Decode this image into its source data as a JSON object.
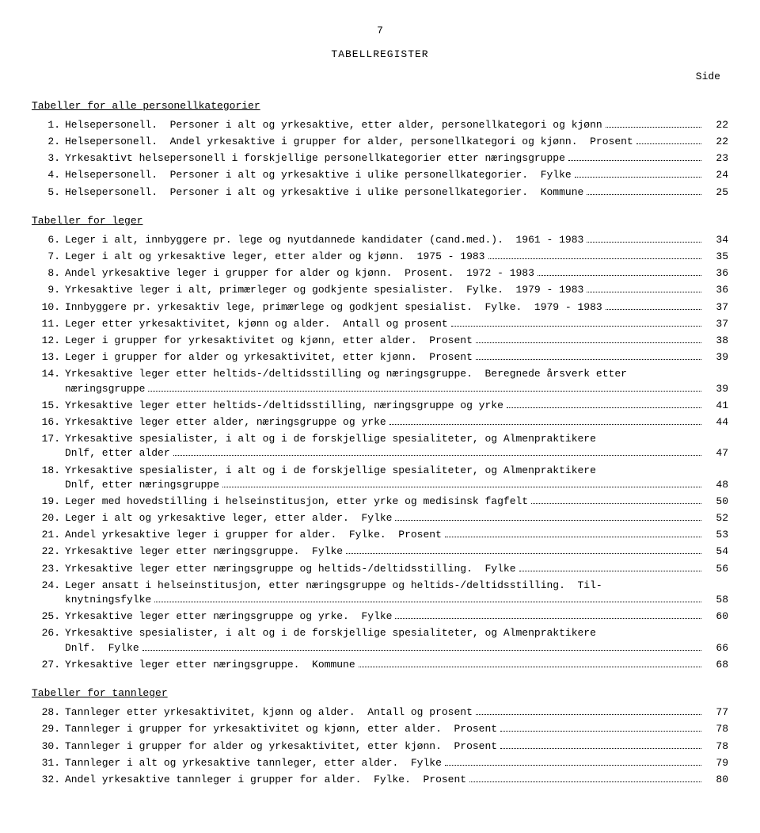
{
  "page_number": "7",
  "title": "TABELLREGISTER",
  "side_label": "Side",
  "sections": [
    {
      "heading": "Tabeller for alle personellkategorier",
      "entries": [
        {
          "n": "1.",
          "lines": [
            "Helsepersonell.  Personer i alt og yrkesaktive, etter alder, personellkategori og kjønn"
          ],
          "pg": "22"
        },
        {
          "n": "2.",
          "lines": [
            "Helsepersonell.  Andel yrkesaktive i grupper for alder, personellkategori og kjønn.  Prosent"
          ],
          "pg": "22"
        },
        {
          "n": "3.",
          "lines": [
            "Yrkesaktivt helsepersonell i forskjellige personellkategorier etter næringsgruppe"
          ],
          "pg": "23"
        },
        {
          "n": "4.",
          "lines": [
            "Helsepersonell.  Personer i alt og yrkesaktive i ulike personellkategorier.  Fylke"
          ],
          "pg": "24"
        },
        {
          "n": "5.",
          "lines": [
            "Helsepersonell.  Personer i alt og yrkesaktive i ulike personellkategorier.  Kommune"
          ],
          "pg": "25"
        }
      ]
    },
    {
      "heading": "Tabeller for leger",
      "entries": [
        {
          "n": "6.",
          "lines": [
            "Leger i alt, innbyggere pr. lege og nyutdannede kandidater (cand.med.).  1961 - 1983"
          ],
          "pg": "34"
        },
        {
          "n": "7.",
          "lines": [
            "Leger i alt og yrkesaktive leger, etter alder og kjønn.  1975 - 1983"
          ],
          "pg": "35"
        },
        {
          "n": "8.",
          "lines": [
            "Andel yrkesaktive leger i grupper for alder og kjønn.  Prosent.  1972 - 1983"
          ],
          "pg": "36"
        },
        {
          "n": "9.",
          "lines": [
            "Yrkesaktive leger i alt, primærleger og godkjente spesialister.  Fylke.  1979 - 1983"
          ],
          "pg": "36"
        },
        {
          "n": "10.",
          "lines": [
            "Innbyggere pr. yrkesaktiv lege, primærlege og godkjent spesialist.  Fylke.  1979 - 1983"
          ],
          "pg": "37"
        },
        {
          "n": "11.",
          "lines": [
            "Leger etter yrkesaktivitet, kjønn og alder.  Antall og prosent"
          ],
          "pg": "37"
        },
        {
          "n": "12.",
          "lines": [
            "Leger i grupper for yrkesaktivitet og kjønn, etter alder.  Prosent"
          ],
          "pg": "38"
        },
        {
          "n": "13.",
          "lines": [
            "Leger i grupper for alder og yrkesaktivitet, etter kjønn.  Prosent"
          ],
          "pg": "39"
        },
        {
          "n": "14.",
          "lines": [
            "Yrkesaktive leger etter heltids-/deltidsstilling og næringsgruppe.  Beregnede årsverk etter",
            "næringsgruppe"
          ],
          "pg": "39"
        },
        {
          "n": "15.",
          "lines": [
            "Yrkesaktive leger etter heltids-/deltidsstilling, næringsgruppe og yrke"
          ],
          "pg": "41"
        },
        {
          "n": "16.",
          "lines": [
            "Yrkesaktive leger etter alder, næringsgruppe og yrke"
          ],
          "pg": "44"
        },
        {
          "n": "17.",
          "lines": [
            "Yrkesaktive spesialister, i alt og i de forskjellige spesialiteter, og Almenpraktikere",
            "Dnlf, etter alder"
          ],
          "pg": "47"
        },
        {
          "n": "18.",
          "lines": [
            "Yrkesaktive spesialister, i alt og i de forskjellige spesialiteter, og Almenpraktikere",
            "Dnlf, etter næringsgruppe"
          ],
          "pg": "48"
        },
        {
          "n": "19.",
          "lines": [
            "Leger med hovedstilling i helseinstitusjon, etter yrke og medisinsk fagfelt"
          ],
          "pg": "50"
        },
        {
          "n": "20.",
          "lines": [
            "Leger i alt og yrkesaktive leger, etter alder.  Fylke"
          ],
          "pg": "52"
        },
        {
          "n": "21.",
          "lines": [
            "Andel yrkesaktive leger i grupper for alder.  Fylke.  Prosent"
          ],
          "pg": "53"
        },
        {
          "n": "22.",
          "lines": [
            "Yrkesaktive leger etter næringsgruppe.  Fylke"
          ],
          "pg": "54"
        },
        {
          "n": "23.",
          "lines": [
            "Yrkesaktive leger etter næringsgruppe og heltids-/deltidsstilling.  Fylke"
          ],
          "pg": "56"
        },
        {
          "n": "24.",
          "lines": [
            "Leger ansatt i helseinstitusjon, etter næringsgruppe og heltids-/deltidsstilling.  Til-",
            "knytningsfylke"
          ],
          "pg": "58"
        },
        {
          "n": "25.",
          "lines": [
            "Yrkesaktive leger etter næringsgruppe og yrke.  Fylke"
          ],
          "pg": "60"
        },
        {
          "n": "26.",
          "lines": [
            "Yrkesaktive spesialister, i alt og i de forskjellige spesialiteter, og Almenpraktikere",
            "Dnlf.  Fylke"
          ],
          "pg": "66"
        },
        {
          "n": "27.",
          "lines": [
            "Yrkesaktive leger etter næringsgruppe.  Kommune"
          ],
          "pg": "68"
        }
      ]
    },
    {
      "heading": "Tabeller for tannleger",
      "entries": [
        {
          "n": "28.",
          "lines": [
            "Tannleger etter yrkesaktivitet, kjønn og alder.  Antall og prosent"
          ],
          "pg": "77"
        },
        {
          "n": "29.",
          "lines": [
            "Tannleger i grupper for yrkesaktivitet og kjønn, etter alder.  Prosent"
          ],
          "pg": "78"
        },
        {
          "n": "30.",
          "lines": [
            "Tannleger i grupper for alder og yrkesaktivitet, etter kjønn.  Prosent"
          ],
          "pg": "78"
        },
        {
          "n": "31.",
          "lines": [
            "Tannleger i alt og yrkesaktive tannleger, etter alder.  Fylke"
          ],
          "pg": "79"
        },
        {
          "n": "32.",
          "lines": [
            "Andel yrkesaktive tannleger i grupper for alder.  Fylke.  Prosent"
          ],
          "pg": "80"
        }
      ]
    }
  ]
}
